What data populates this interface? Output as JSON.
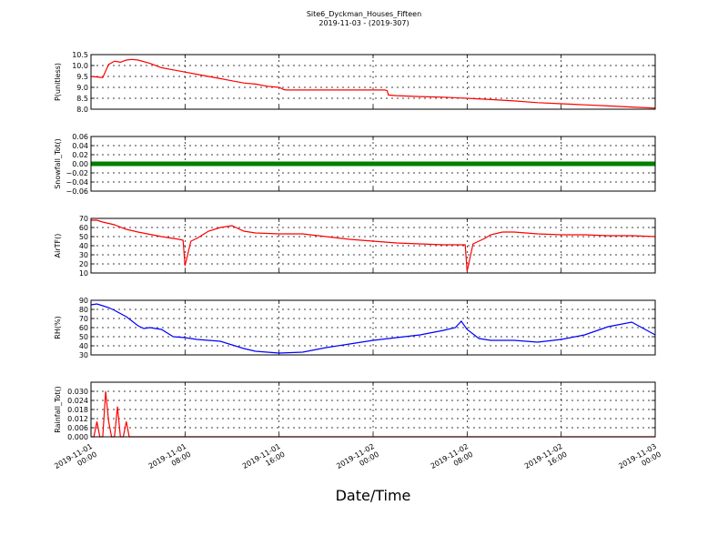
{
  "title": {
    "line1": "Site6_Dyckman_Houses_Fifteen",
    "line2": "2019-11-03 - (2019-307)"
  },
  "x_axis_label": "Date/Time",
  "colors": {
    "red": "#ff0000",
    "green": "#008000",
    "blue": "#0000ff"
  },
  "chart_data": {
    "type": "line",
    "x_ticks": [
      {
        "line1": "2019-11-01",
        "line2": "00:00"
      },
      {
        "line1": "2019-11-01",
        "line2": "08:00"
      },
      {
        "line1": "2019-11-01",
        "line2": "16:00"
      },
      {
        "line1": "2019-11-02",
        "line2": "00:00"
      },
      {
        "line1": "2019-11-02",
        "line2": "08:00"
      },
      {
        "line1": "2019-11-02",
        "line2": "16:00"
      },
      {
        "line1": "2019-11-03",
        "line2": "00:00"
      }
    ],
    "xlim": [
      "2019-11-01 00:00",
      "2019-11-03 00:00"
    ],
    "panels": [
      {
        "ylabel": "P(unitless)",
        "ylim": [
          8.0,
          10.5
        ],
        "yticks": [
          "8.0",
          "8.5",
          "9.0",
          "9.5",
          "10.0",
          "10.5"
        ],
        "color": "red",
        "x": [
          "2019-11-01 00:00",
          "2019-11-01 01:00",
          "2019-11-01 01:30",
          "2019-11-01 02:00",
          "2019-11-01 02:30",
          "2019-11-01 03:00",
          "2019-11-01 03:30",
          "2019-11-01 04:00",
          "2019-11-01 05:00",
          "2019-11-01 06:00",
          "2019-11-01 07:00",
          "2019-11-01 08:00",
          "2019-11-01 09:00",
          "2019-11-01 10:00",
          "2019-11-01 11:00",
          "2019-11-01 12:00",
          "2019-11-01 13:00",
          "2019-11-01 14:00",
          "2019-11-01 15:00",
          "2019-11-01 16:00",
          "2019-11-01 16:24",
          "2019-11-01 16:36",
          "2019-11-01 18:00",
          "2019-11-01 20:00",
          "2019-11-01 22:00",
          "2019-11-02 00:00",
          "2019-11-02 01:00",
          "2019-11-02 01:12",
          "2019-11-02 01:18",
          "2019-11-02 02:00",
          "2019-11-02 04:00",
          "2019-11-02 06:00",
          "2019-11-02 08:00",
          "2019-11-02 10:00",
          "2019-11-02 12:00",
          "2019-11-02 14:00",
          "2019-11-02 16:00",
          "2019-11-02 18:00",
          "2019-11-02 20:00",
          "2019-11-02 22:00",
          "2019-11-03 00:00"
        ],
        "y": [
          9.5,
          9.45,
          10.05,
          10.2,
          10.15,
          10.25,
          10.28,
          10.25,
          10.1,
          9.9,
          9.8,
          9.7,
          9.6,
          9.5,
          9.4,
          9.3,
          9.2,
          9.15,
          9.05,
          9.0,
          8.9,
          8.88,
          8.88,
          8.88,
          8.88,
          8.88,
          8.88,
          8.85,
          8.65,
          8.62,
          8.58,
          8.55,
          8.5,
          8.44,
          8.38,
          8.3,
          8.25,
          8.2,
          8.15,
          8.1,
          8.05
        ]
      },
      {
        "ylabel": "Snowfall_Tot()",
        "ylim": [
          -0.06,
          0.06
        ],
        "yticks": [
          "−0.06",
          "−0.04",
          "−0.02",
          "0.00",
          "0.02",
          "0.04",
          "0.06"
        ],
        "color": "green",
        "style": "marker",
        "x": [
          "2019-11-01 00:00",
          "2019-11-03 00:00"
        ],
        "y": [
          0.0,
          0.0
        ]
      },
      {
        "ylabel": "AirTF()",
        "ylim": [
          10,
          70
        ],
        "yticks": [
          "10",
          "20",
          "30",
          "40",
          "50",
          "60",
          "70"
        ],
        "color": "red",
        "x": [
          "2019-11-01 00:00",
          "2019-11-01 00:30",
          "2019-11-01 01:00",
          "2019-11-01 02:00",
          "2019-11-01 03:00",
          "2019-11-01 04:00",
          "2019-11-01 06:00",
          "2019-11-01 07:30",
          "2019-11-01 07:50",
          "2019-11-01 08:00",
          "2019-11-01 08:30",
          "2019-11-01 09:00",
          "2019-11-01 09:30",
          "2019-11-01 10:00",
          "2019-11-01 11:00",
          "2019-11-01 12:00",
          "2019-11-01 13:00",
          "2019-11-01 14:00",
          "2019-11-01 16:00",
          "2019-11-01 18:00",
          "2019-11-01 20:00",
          "2019-11-01 22:00",
          "2019-11-02 00:00",
          "2019-11-02 02:00",
          "2019-11-02 04:00",
          "2019-11-02 06:00",
          "2019-11-02 07:50",
          "2019-11-02 08:00",
          "2019-11-02 08:30",
          "2019-11-02 09:30",
          "2019-11-02 10:00",
          "2019-11-02 11:00",
          "2019-11-02 12:00",
          "2019-11-02 13:00",
          "2019-11-02 14:00",
          "2019-11-02 16:00",
          "2019-11-02 18:00",
          "2019-11-02 20:00",
          "2019-11-02 22:00",
          "2019-11-03 00:00"
        ],
        "y": [
          68,
          68,
          66,
          63,
          58,
          55,
          50,
          47,
          46,
          18,
          45,
          48,
          52,
          56,
          60,
          62,
          56,
          54,
          53,
          53,
          50,
          47,
          45,
          43,
          42,
          41,
          41,
          12,
          42,
          48,
          52,
          55,
          55,
          54,
          53,
          52,
          52,
          51,
          51,
          50
        ]
      },
      {
        "ylabel": "RH(%)",
        "ylim": [
          30,
          90
        ],
        "yticks": [
          "30",
          "40",
          "50",
          "60",
          "70",
          "80",
          "90"
        ],
        "color": "blue",
        "x": [
          "2019-11-01 00:00",
          "2019-11-01 00:30",
          "2019-11-01 01:00",
          "2019-11-01 01:30",
          "2019-11-01 02:00",
          "2019-11-01 03:00",
          "2019-11-01 04:00",
          "2019-11-01 04:30",
          "2019-11-01 05:00",
          "2019-11-01 06:00",
          "2019-11-01 07:00",
          "2019-11-01 08:00",
          "2019-11-01 09:00",
          "2019-11-01 10:00",
          "2019-11-01 11:00",
          "2019-11-01 12:00",
          "2019-11-01 13:00",
          "2019-11-01 14:00",
          "2019-11-01 15:00",
          "2019-11-01 16:00",
          "2019-11-01 18:00",
          "2019-11-01 20:00",
          "2019-11-01 22:00",
          "2019-11-02 00:00",
          "2019-11-02 02:00",
          "2019-11-02 04:00",
          "2019-11-02 06:00",
          "2019-11-02 07:00",
          "2019-11-02 07:30",
          "2019-11-02 08:00",
          "2019-11-02 09:00",
          "2019-11-02 10:00",
          "2019-11-02 12:00",
          "2019-11-02 14:00",
          "2019-11-02 16:00",
          "2019-11-02 18:00",
          "2019-11-02 20:00",
          "2019-11-02 22:00",
          "2019-11-03 00:00"
        ],
        "y": [
          85,
          86,
          84,
          82,
          79,
          72,
          62,
          59,
          60,
          58,
          50,
          49,
          47,
          46,
          45,
          41,
          37,
          34,
          33,
          32,
          33,
          38,
          42,
          46,
          49,
          52,
          57,
          60,
          67,
          58,
          48,
          46,
          46,
          44,
          47,
          52,
          61,
          66,
          52
        ]
      },
      {
        "ylabel": "Rainfall_Tot()",
        "ylim": [
          0.0,
          0.036
        ],
        "yticks": [
          "0.000",
          "0.006",
          "0.012",
          "0.018",
          "0.024",
          "0.030"
        ],
        "color": "red",
        "x": [
          "2019-11-01 00:00",
          "2019-11-01 00:15",
          "2019-11-01 00:30",
          "2019-11-01 00:45",
          "2019-11-01 01:00",
          "2019-11-01 01:15",
          "2019-11-01 01:30",
          "2019-11-01 01:45",
          "2019-11-01 02:00",
          "2019-11-01 02:15",
          "2019-11-01 02:30",
          "2019-11-01 02:45",
          "2019-11-01 03:00",
          "2019-11-01 03:15",
          "2019-11-01 03:30",
          "2019-11-01 04:00",
          "2019-11-03 00:00"
        ],
        "y": [
          0.0,
          0.0,
          0.01,
          0.0,
          0.0,
          0.03,
          0.01,
          0.0,
          0.0,
          0.02,
          0.0,
          0.0,
          0.01,
          0.0,
          0.0,
          0.0,
          0.0
        ]
      }
    ]
  }
}
